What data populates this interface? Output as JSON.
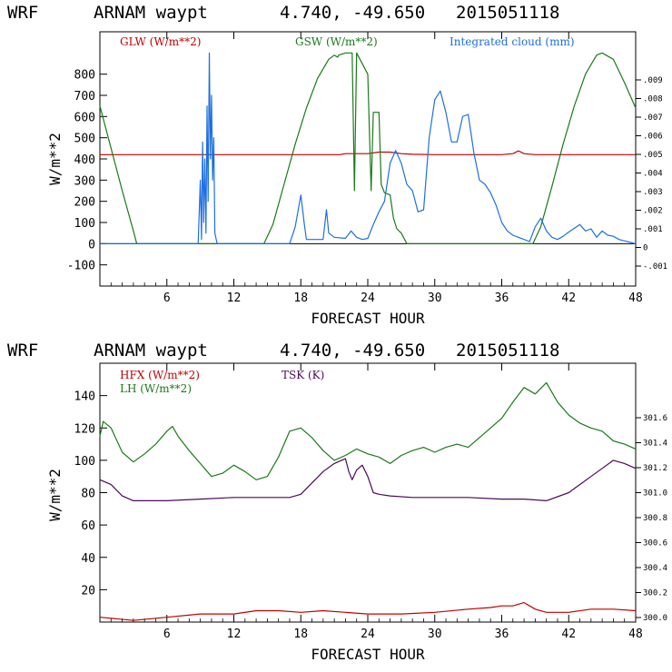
{
  "chart_data": [
    {
      "type": "line",
      "header": {
        "model": "WRF",
        "location": "ARNAM waypt",
        "coords": "4.740, -49.650",
        "date": "2015051118"
      },
      "xlabel": "FORECAST HOUR",
      "ylabel": "W/m**2",
      "xlim": [
        0,
        48
      ],
      "ylim": [
        -200,
        1000
      ],
      "x_ticks": [
        "6",
        "12",
        "18",
        "24",
        "30",
        "36",
        "42",
        "48"
      ],
      "y_ticks": [
        "800",
        "700",
        "600",
        "500",
        "400",
        "300",
        "200",
        "100",
        "0",
        "-100"
      ],
      "right_ticks": [
        ".009",
        ".008",
        ".007",
        ".006",
        ".005",
        ".004",
        ".003",
        ".002",
        ".001",
        "0",
        "-.001"
      ],
      "series": [
        {
          "name": "GLW (W/m**2)",
          "color": "#c00000",
          "points": [
            [
              0,
              420
            ],
            [
              20,
              420
            ],
            [
              21.5,
              420
            ],
            [
              22,
              425
            ],
            [
              24,
              425
            ],
            [
              25,
              432
            ],
            [
              26,
              432
            ],
            [
              27,
              425
            ],
            [
              28,
              422
            ],
            [
              30,
              420
            ],
            [
              36,
              420
            ],
            [
              37,
              425
            ],
            [
              37.5,
              438
            ],
            [
              38,
              425
            ],
            [
              39,
              420
            ],
            [
              48,
              420
            ]
          ]
        },
        {
          "name": "GSW (W/m**2)",
          "color": "#1a7a1a",
          "points": [
            [
              0,
              650
            ],
            [
              1,
              450
            ],
            [
              2,
              250
            ],
            [
              3,
              60
            ],
            [
              3.3,
              0
            ],
            [
              14.7,
              0
            ],
            [
              15.5,
              90
            ],
            [
              16.5,
              280
            ],
            [
              17.5,
              470
            ],
            [
              18.5,
              640
            ],
            [
              19.5,
              780
            ],
            [
              20.5,
              870
            ],
            [
              21,
              890
            ],
            [
              21.3,
              880
            ],
            [
              21.4,
              890
            ],
            [
              22,
              900
            ],
            [
              22.6,
              900
            ],
            [
              22.8,
              250
            ],
            [
              23,
              900
            ],
            [
              24,
              800
            ],
            [
              24.3,
              250
            ],
            [
              24.5,
              620
            ],
            [
              25,
              620
            ],
            [
              25.2,
              280
            ],
            [
              25.5,
              240
            ],
            [
              26,
              230
            ],
            [
              26.3,
              120
            ],
            [
              26.6,
              70
            ],
            [
              27,
              50
            ],
            [
              27.5,
              0
            ],
            [
              38.8,
              0
            ],
            [
              39.5,
              80
            ],
            [
              40.5,
              270
            ],
            [
              41.5,
              470
            ],
            [
              42.5,
              650
            ],
            [
              43.5,
              800
            ],
            [
              44.5,
              890
            ],
            [
              45,
              900
            ],
            [
              46,
              870
            ],
            [
              47,
              760
            ],
            [
              48,
              640
            ]
          ]
        },
        {
          "name": "Integrated cloud (mm)",
          "color": "#1e6fe0",
          "points": [
            [
              0,
              0
            ],
            [
              8.8,
              0
            ],
            [
              9,
              300
            ],
            [
              9.1,
              20
            ],
            [
              9.2,
              480
            ],
            [
              9.3,
              100
            ],
            [
              9.4,
              400
            ],
            [
              9.5,
              50
            ],
            [
              9.6,
              650
            ],
            [
              9.7,
              200
            ],
            [
              9.8,
              900
            ],
            [
              9.9,
              400
            ],
            [
              10,
              700
            ],
            [
              10.1,
              300
            ],
            [
              10.2,
              500
            ],
            [
              10.3,
              50
            ],
            [
              10.5,
              0
            ],
            [
              17,
              0
            ],
            [
              17.5,
              80
            ],
            [
              18,
              230
            ],
            [
              18.3,
              100
            ],
            [
              18.5,
              20
            ],
            [
              20,
              20
            ],
            [
              20.3,
              160
            ],
            [
              20.5,
              50
            ],
            [
              21,
              30
            ],
            [
              22,
              25
            ],
            [
              22.5,
              60
            ],
            [
              23,
              30
            ],
            [
              23.5,
              20
            ],
            [
              24,
              25
            ],
            [
              24.5,
              90
            ],
            [
              25,
              150
            ],
            [
              25.5,
              200
            ],
            [
              26,
              380
            ],
            [
              26.5,
              440
            ],
            [
              27,
              380
            ],
            [
              27.5,
              280
            ],
            [
              28,
              250
            ],
            [
              28.5,
              150
            ],
            [
              29,
              160
            ],
            [
              29.5,
              500
            ],
            [
              30,
              680
            ],
            [
              30.5,
              720
            ],
            [
              31,
              620
            ],
            [
              31.5,
              480
            ],
            [
              32,
              480
            ],
            [
              32.5,
              600
            ],
            [
              33,
              610
            ],
            [
              33.5,
              430
            ],
            [
              34,
              300
            ],
            [
              34.5,
              280
            ],
            [
              35,
              240
            ],
            [
              35.5,
              180
            ],
            [
              36,
              100
            ],
            [
              36.5,
              60
            ],
            [
              37,
              40
            ],
            [
              37.5,
              30
            ],
            [
              38,
              20
            ],
            [
              38.5,
              10
            ],
            [
              39,
              80
            ],
            [
              39.5,
              120
            ],
            [
              40,
              60
            ],
            [
              40.5,
              30
            ],
            [
              41,
              20
            ],
            [
              41.5,
              35
            ],
            [
              42,
              55
            ],
            [
              43,
              90
            ],
            [
              43.5,
              60
            ],
            [
              44,
              70
            ],
            [
              44.5,
              30
            ],
            [
              45,
              60
            ],
            [
              45.5,
              40
            ],
            [
              46,
              35
            ],
            [
              46.5,
              20
            ],
            [
              48,
              0
            ]
          ]
        }
      ]
    },
    {
      "type": "line",
      "header": {
        "model": "WRF",
        "location": "ARNAM waypt",
        "coords": "4.740, -49.650",
        "date": "2015051118"
      },
      "xlabel": "FORECAST HOUR",
      "ylabel": "W/m**2",
      "xlim": [
        0,
        48
      ],
      "ylim": [
        0,
        160
      ],
      "x_ticks": [
        "6",
        "12",
        "18",
        "24",
        "30",
        "36",
        "42",
        "48"
      ],
      "y_ticks": [
        "140",
        "120",
        "100",
        "80",
        "60",
        "40",
        "20"
      ],
      "right_ticks": [
        "301.6",
        "301.4",
        "301.2",
        "301.0",
        "300.8",
        "300.6",
        "300.4",
        "300.2",
        "300.0"
      ],
      "series": [
        {
          "name": "HFX (W/m**2)",
          "color": "#c00000",
          "points": [
            [
              0,
              3
            ],
            [
              3,
              1
            ],
            [
              6,
              3
            ],
            [
              9,
              5
            ],
            [
              12,
              5
            ],
            [
              14,
              7
            ],
            [
              16,
              7
            ],
            [
              18,
              6
            ],
            [
              20,
              7
            ],
            [
              22,
              6
            ],
            [
              24,
              5
            ],
            [
              27,
              5
            ],
            [
              30,
              6
            ],
            [
              33,
              8
            ],
            [
              35,
              9
            ],
            [
              36,
              10
            ],
            [
              37,
              10
            ],
            [
              38,
              12
            ],
            [
              39,
              8
            ],
            [
              40,
              6
            ],
            [
              42,
              6
            ],
            [
              44,
              8
            ],
            [
              46,
              8
            ],
            [
              48,
              7
            ]
          ]
        },
        {
          "name": "LH (W/m**2)",
          "color": "#1a7a1a",
          "points": [
            [
              0,
              115
            ],
            [
              0.3,
              124
            ],
            [
              1,
              120
            ],
            [
              2,
              105
            ],
            [
              3,
              99
            ],
            [
              4,
              104
            ],
            [
              5,
              110
            ],
            [
              6,
              118
            ],
            [
              6.5,
              121
            ],
            [
              7,
              115
            ],
            [
              8,
              106
            ],
            [
              9,
              98
            ],
            [
              10,
              90
            ],
            [
              11,
              92
            ],
            [
              12,
              97
            ],
            [
              13,
              93
            ],
            [
              14,
              88
            ],
            [
              15,
              90
            ],
            [
              16,
              102
            ],
            [
              17,
              118
            ],
            [
              18,
              120
            ],
            [
              19,
              114
            ],
            [
              20,
              106
            ],
            [
              21,
              100
            ],
            [
              22,
              103
            ],
            [
              23,
              107
            ],
            [
              24,
              104
            ],
            [
              25,
              102
            ],
            [
              26,
              98
            ],
            [
              27,
              103
            ],
            [
              28,
              106
            ],
            [
              29,
              108
            ],
            [
              30,
              105
            ],
            [
              31,
              108
            ],
            [
              32,
              110
            ],
            [
              33,
              108
            ],
            [
              34,
              114
            ],
            [
              35,
              120
            ],
            [
              36,
              126
            ],
            [
              37,
              136
            ],
            [
              38,
              145
            ],
            [
              39,
              141
            ],
            [
              40,
              148
            ],
            [
              41,
              136
            ],
            [
              42,
              128
            ],
            [
              43,
              123
            ],
            [
              44,
              120
            ],
            [
              45,
              118
            ],
            [
              46,
              112
            ],
            [
              47,
              110
            ],
            [
              48,
              107
            ]
          ]
        },
        {
          "name": "TSK (K)",
          "color": "#4b0a5a",
          "points": [
            [
              0,
              88
            ],
            [
              1,
              85
            ],
            [
              2,
              78
            ],
            [
              3,
              75
            ],
            [
              6,
              75
            ],
            [
              9,
              76
            ],
            [
              12,
              77
            ],
            [
              15,
              77
            ],
            [
              17,
              77
            ],
            [
              18,
              79
            ],
            [
              19,
              86
            ],
            [
              20,
              93
            ],
            [
              21,
              98
            ],
            [
              22,
              101
            ],
            [
              22.3,
              93
            ],
            [
              22.6,
              88
            ],
            [
              23,
              94
            ],
            [
              23.5,
              97
            ],
            [
              24,
              90
            ],
            [
              24.5,
              80
            ],
            [
              25,
              79
            ],
            [
              26,
              78
            ],
            [
              28,
              77
            ],
            [
              30,
              77
            ],
            [
              33,
              77
            ],
            [
              36,
              76
            ],
            [
              38,
              76
            ],
            [
              40,
              75
            ],
            [
              42,
              80
            ],
            [
              43,
              85
            ],
            [
              44,
              90
            ],
            [
              45,
              95
            ],
            [
              46,
              100
            ],
            [
              47,
              98
            ],
            [
              48,
              95
            ]
          ]
        }
      ]
    }
  ]
}
